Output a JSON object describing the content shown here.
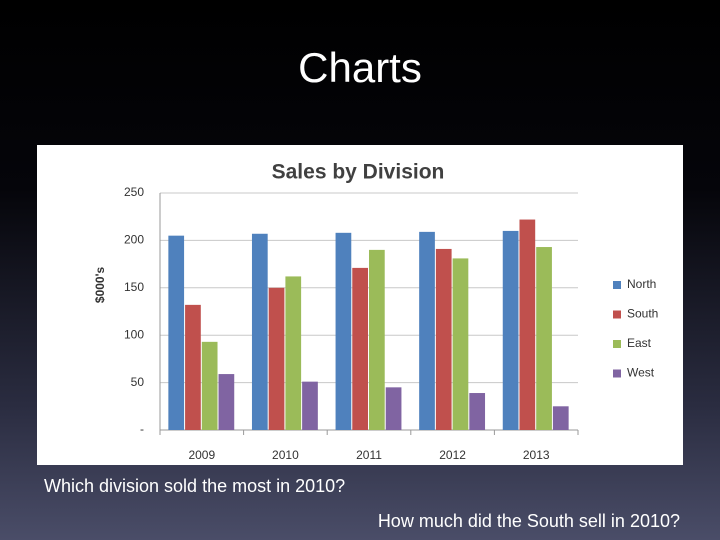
{
  "slide": {
    "title": "Charts",
    "questions": [
      "Which division sold the most in 2010?",
      "How much did the South sell in 2010?"
    ]
  },
  "chart_data": {
    "type": "bar",
    "title": "Sales by Division",
    "y_label": "$000's",
    "categories": [
      "2009",
      "2010",
      "2011",
      "2012",
      "2013"
    ],
    "series": [
      {
        "name": "North",
        "color": "#4f81bd",
        "values": [
          205,
          207,
          208,
          209,
          210
        ]
      },
      {
        "name": "South",
        "color": "#c0504d",
        "values": [
          132,
          150,
          171,
          191,
          222
        ]
      },
      {
        "name": "East",
        "color": "#9bbb59",
        "values": [
          93,
          162,
          190,
          181,
          193
        ]
      },
      {
        "name": "West",
        "color": "#8064a2",
        "values": [
          59,
          51,
          45,
          39,
          25
        ]
      }
    ],
    "ylim": [
      0,
      250
    ],
    "yticks": [
      {
        "value": 0,
        "label": "-"
      },
      50,
      100,
      150,
      200,
      250
    ],
    "grid": true,
    "legend": "right"
  }
}
